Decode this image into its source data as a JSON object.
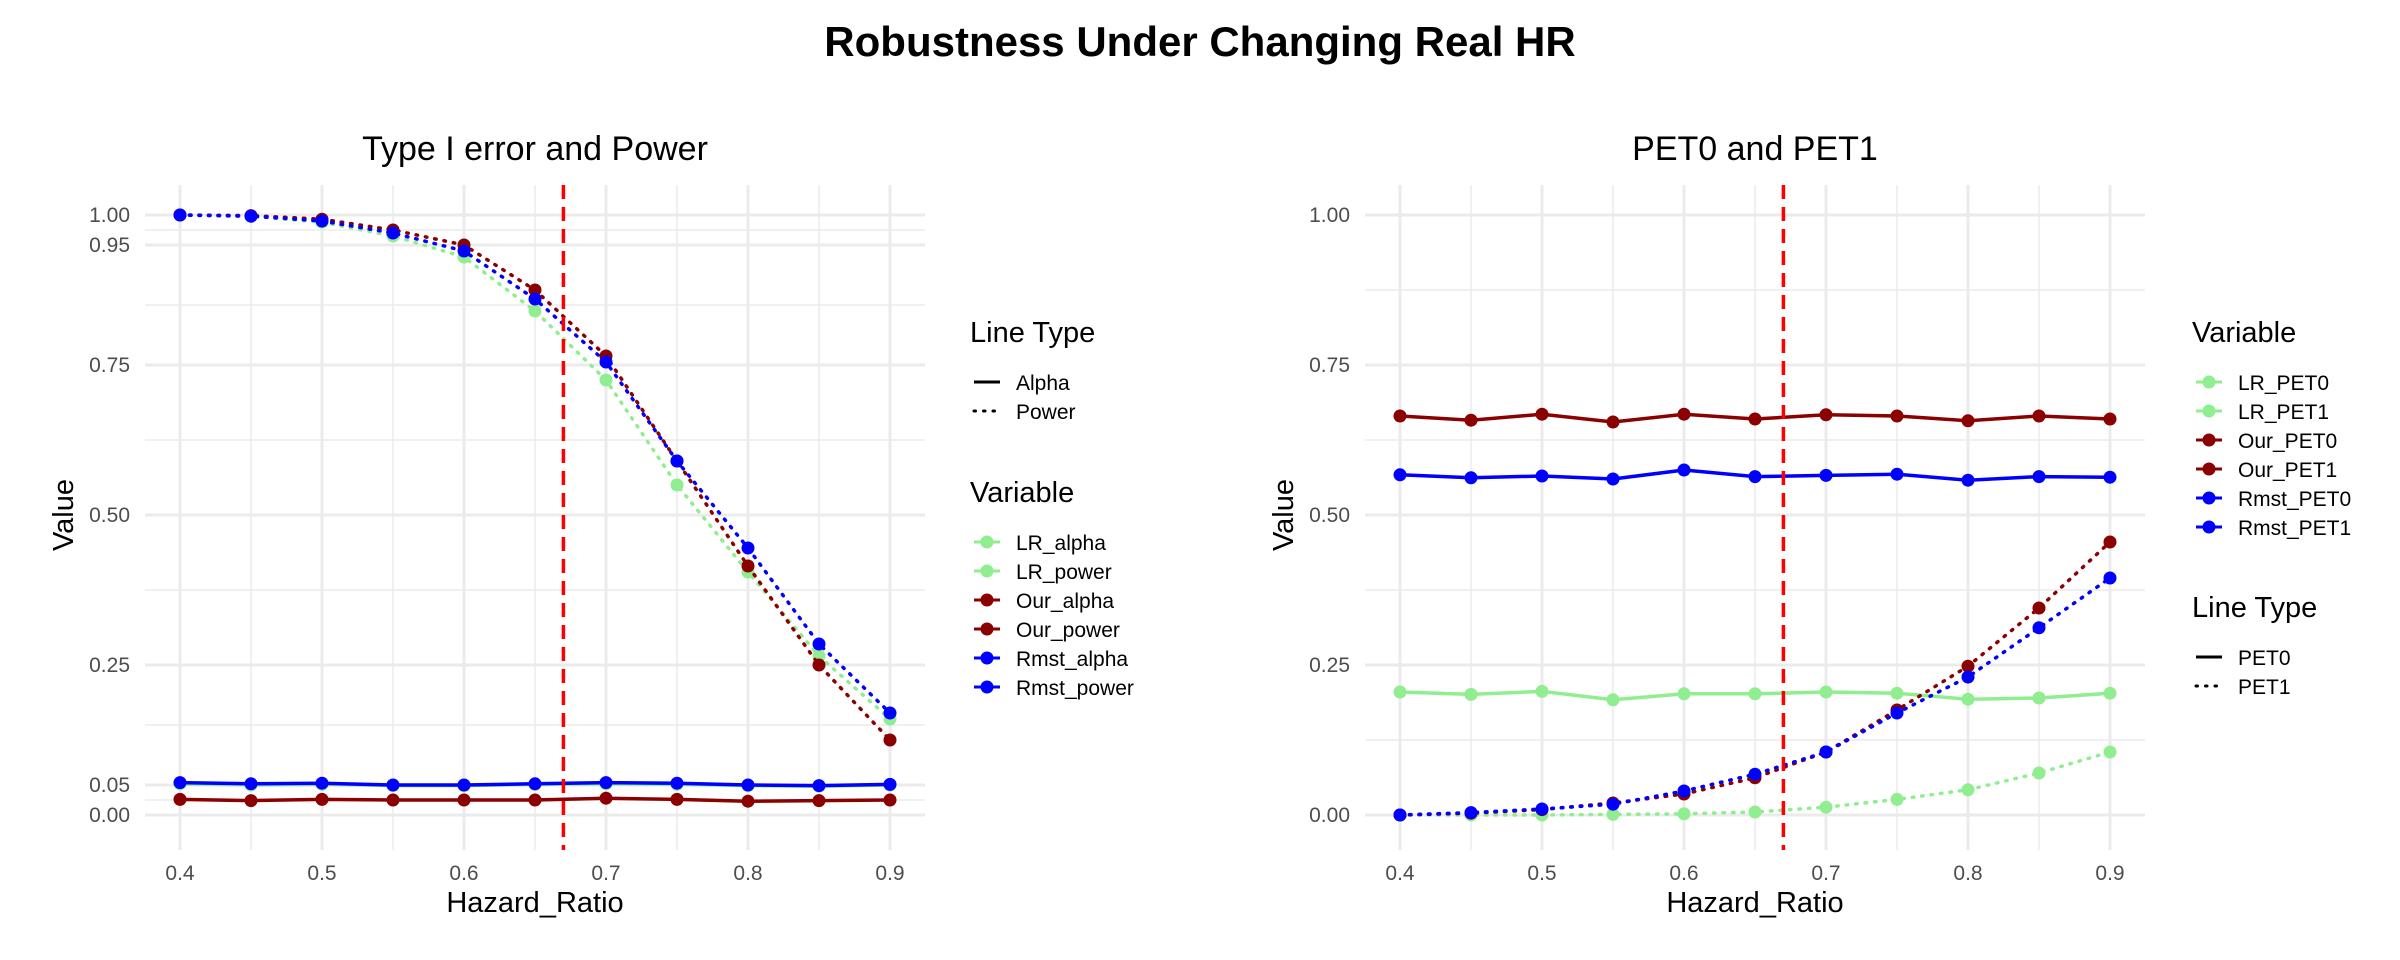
{
  "title": "Robustness Under Changing Real HR",
  "colors": {
    "lr": "#90ee90",
    "our": "#8b0000",
    "rmst": "#0000ff",
    "vline": "#ff0000",
    "grid": "#ebebeb"
  },
  "chart_data": [
    {
      "type": "line",
      "title": "Type I error and Power",
      "xlabel": "Hazard_Ratio",
      "ylabel": "Value",
      "x": [
        0.4,
        0.45,
        0.5,
        0.55,
        0.6,
        0.65,
        0.7,
        0.75,
        0.8,
        0.85,
        0.9
      ],
      "xticks": [
        "0.4",
        "0.5",
        "0.6",
        "0.7",
        "0.8",
        "0.9"
      ],
      "yticks": [
        "0.00",
        "0.05",
        "0.25",
        "0.50",
        "0.75",
        "0.95",
        "1.00"
      ],
      "xlim": [
        0.4,
        0.9
      ],
      "ylim": [
        0,
        1
      ],
      "vline": 0.67,
      "grid": true,
      "legend_placement": "right",
      "legends": [
        {
          "title": "Line Type",
          "items": [
            {
              "label": "Alpha",
              "style": "solid"
            },
            {
              "label": "Power",
              "style": "dotted"
            }
          ]
        },
        {
          "title": "Variable",
          "items": [
            {
              "label": "LR_alpha",
              "color": "lr"
            },
            {
              "label": "LR_power",
              "color": "lr"
            },
            {
              "label": "Our_alpha",
              "color": "our"
            },
            {
              "label": "Our_power",
              "color": "our"
            },
            {
              "label": "Rmst_alpha",
              "color": "rmst"
            },
            {
              "label": "Rmst_power",
              "color": "rmst"
            }
          ]
        }
      ],
      "series": [
        {
          "name": "LR_alpha",
          "color": "lr",
          "style": "solid",
          "values": [
            0.052,
            0.05,
            0.051,
            0.049,
            0.049,
            0.051,
            0.052,
            0.051,
            0.049,
            0.048,
            0.05
          ]
        },
        {
          "name": "Rmst_alpha",
          "color": "rmst",
          "style": "solid",
          "values": [
            0.054,
            0.052,
            0.053,
            0.05,
            0.05,
            0.052,
            0.054,
            0.053,
            0.05,
            0.049,
            0.051
          ]
        },
        {
          "name": "Our_alpha",
          "color": "our",
          "style": "solid",
          "values": [
            0.026,
            0.024,
            0.026,
            0.025,
            0.025,
            0.025,
            0.028,
            0.026,
            0.023,
            0.024,
            0.025
          ]
        },
        {
          "name": "LR_power",
          "color": "lr",
          "style": "dotted",
          "values": [
            1.0,
            0.998,
            0.988,
            0.965,
            0.93,
            0.84,
            0.725,
            0.55,
            0.405,
            0.265,
            0.16
          ]
        },
        {
          "name": "Our_power",
          "color": "our",
          "style": "dotted",
          "values": [
            1.0,
            0.999,
            0.993,
            0.975,
            0.95,
            0.875,
            0.765,
            0.59,
            0.415,
            0.25,
            0.125
          ]
        },
        {
          "name": "Rmst_power",
          "color": "rmst",
          "style": "dotted",
          "values": [
            1.0,
            0.998,
            0.99,
            0.97,
            0.94,
            0.86,
            0.755,
            0.59,
            0.445,
            0.285,
            0.17
          ]
        }
      ]
    },
    {
      "type": "line",
      "title": "PET0 and PET1",
      "xlabel": "Hazard_Ratio",
      "ylabel": "Value",
      "x": [
        0.4,
        0.45,
        0.5,
        0.55,
        0.6,
        0.65,
        0.7,
        0.75,
        0.8,
        0.85,
        0.9
      ],
      "xticks": [
        "0.4",
        "0.5",
        "0.6",
        "0.7",
        "0.8",
        "0.9"
      ],
      "yticks": [
        "0.00",
        "0.25",
        "0.50",
        "0.75",
        "1.00"
      ],
      "xlim": [
        0.4,
        0.9
      ],
      "ylim": [
        0,
        1
      ],
      "vline": 0.67,
      "grid": true,
      "legend_placement": "right",
      "legends": [
        {
          "title": "Variable",
          "items": [
            {
              "label": "LR_PET0",
              "color": "lr"
            },
            {
              "label": "LR_PET1",
              "color": "lr"
            },
            {
              "label": "Our_PET0",
              "color": "our"
            },
            {
              "label": "Our_PET1",
              "color": "our"
            },
            {
              "label": "Rmst_PET0",
              "color": "rmst"
            },
            {
              "label": "Rmst_PET1",
              "color": "rmst"
            }
          ]
        },
        {
          "title": "Line Type",
          "items": [
            {
              "label": "PET0",
              "style": "solid"
            },
            {
              "label": "PET1",
              "style": "dotted"
            }
          ]
        }
      ],
      "series": [
        {
          "name": "Our_PET0",
          "color": "our",
          "style": "solid",
          "values": [
            0.665,
            0.658,
            0.668,
            0.655,
            0.668,
            0.66,
            0.667,
            0.665,
            0.657,
            0.665,
            0.66
          ]
        },
        {
          "name": "Rmst_PET0",
          "color": "rmst",
          "style": "solid",
          "values": [
            0.567,
            0.562,
            0.565,
            0.56,
            0.575,
            0.564,
            0.566,
            0.568,
            0.558,
            0.564,
            0.563
          ]
        },
        {
          "name": "LR_PET0",
          "color": "lr",
          "style": "solid",
          "values": [
            0.205,
            0.201,
            0.206,
            0.192,
            0.202,
            0.202,
            0.205,
            0.203,
            0.193,
            0.195,
            0.203
          ]
        },
        {
          "name": "LR_PET1",
          "color": "lr",
          "style": "dotted",
          "values": [
            0.0,
            0.0,
            0.0,
            0.001,
            0.002,
            0.005,
            0.013,
            0.026,
            0.042,
            0.07,
            0.105
          ]
        },
        {
          "name": "Our_PET1",
          "color": "our",
          "style": "dotted",
          "values": [
            0.0,
            0.003,
            0.009,
            0.02,
            0.035,
            0.062,
            0.105,
            0.175,
            0.248,
            0.345,
            0.455
          ]
        },
        {
          "name": "Rmst_PET1",
          "color": "rmst",
          "style": "dotted",
          "values": [
            0.0,
            0.004,
            0.01,
            0.018,
            0.04,
            0.068,
            0.105,
            0.17,
            0.23,
            0.312,
            0.395
          ]
        }
      ]
    }
  ]
}
